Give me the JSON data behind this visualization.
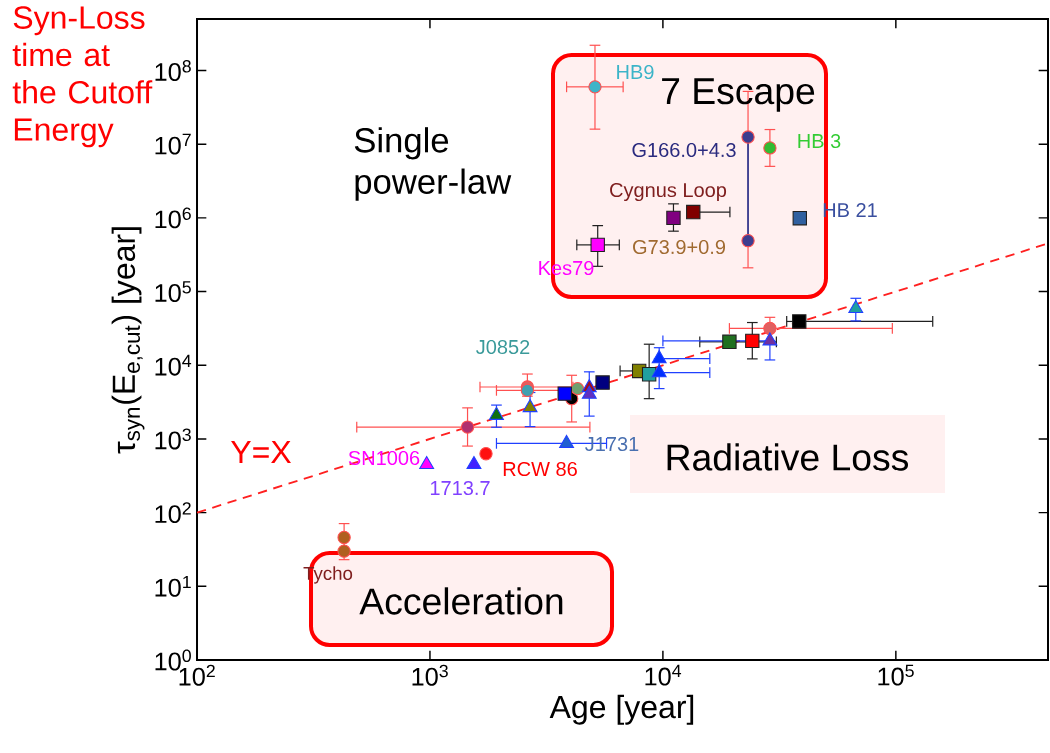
{
  "chart_data": {
    "type": "scatter",
    "log": "xy",
    "xlabel": "Age [year]",
    "ylabel": "τ$_{syn}$(E$_{e,cut}$) [year]",
    "xlim": [
      100,
      450000
    ],
    "ylim": [
      1,
      500000000
    ],
    "xticks": [
      {
        "value": 100,
        "label": "10$^{2}$"
      },
      {
        "value": 1000,
        "label": "10$^{3}$"
      },
      {
        "value": 10000,
        "label": "10$^{4}$"
      },
      {
        "value": 100000,
        "label": "10$^{5}$"
      }
    ],
    "yticks": [
      {
        "value": 1,
        "label": "10$^{0}$"
      },
      {
        "value": 10,
        "label": "10$^{1}$"
      },
      {
        "value": 100,
        "label": "10$^{2}$"
      },
      {
        "value": 1000,
        "label": "10$^{3}$"
      },
      {
        "value": 10000,
        "label": "10$^{4}$"
      },
      {
        "value": 100000,
        "label": "10$^{5}$"
      },
      {
        "value": 1000000,
        "label": "10$^{6}$"
      },
      {
        "value": 10000000,
        "label": "10$^{7}$"
      },
      {
        "value": 100000000,
        "label": "10$^{8}$"
      }
    ],
    "series": [
      {
        "type": "line",
        "color": "#ff2020",
        "line_style": "dashed",
        "marker": "none",
        "x": [
          100,
          450000
        ],
        "values": [
          100,
          450000
        ]
      },
      {
        "type": "line",
        "color": "#3d3d8f",
        "line_style": "solid",
        "marker": "none",
        "x": [
          23200,
          23200
        ],
        "values": [
          12500000,
          490000
        ]
      },
      {
        "marker": "circle",
        "color": "#ff5050",
        "x": [
          5110,
          23200,
          23200,
          28800,
          1450,
          1740,
          2620,
          2620,
          4060,
          4300,
          28800,
          428,
          428
        ],
        "values": [
          60000000,
          12500000,
          490000,
          8900000,
          1450,
          630,
          5070,
          4560,
          3520,
          4820,
          31600,
          46,
          30
        ],
        "colors": [
          "#3cb4c8",
          "#3d3d8f",
          "#3d3d8f",
          "#33bb33",
          "#b0306f",
          "#ff1010",
          "#e06060",
          "#40a0b0",
          "#000000",
          "#70a070",
          "#e06060",
          "#b06020",
          "#b06020"
        ],
        "errors": [
          [
            16000000,
            220000000
          ],
          [
            12500000,
            52000000
          ],
          [
            210000,
            490000
          ],
          [
            5000000,
            15800000
          ],
          [
            800,
            2640
          ],
          null,
          [
            3800,
            7600
          ],
          null,
          [
            1700,
            7310
          ],
          null,
          [
            20000,
            44700
          ],
          [
            23,
            71
          ],
          null
        ],
        "xerrors": [
          [
            3860,
            6750
          ],
          null,
          null,
          null,
          [
            485,
            4860
          ],
          null,
          [
            1640,
            4110
          ],
          [
            1930,
            4860
          ],
          null,
          null,
          [
            19300,
            96600
          ],
          null,
          null
        ]
      },
      {
        "marker": "square",
        "color": "#202020",
        "x": [
          5250,
          11100,
          13500,
          38700,
          3790,
          5510,
          7910,
          8730,
          19300,
          24200,
          38500
        ],
        "values": [
          430000,
          1000000,
          1200000,
          990000,
          4120,
          5820,
          8370,
          7550,
          20800,
          21400,
          39300
        ],
        "colors": [
          "#ff00ff",
          "#800080",
          "#800000",
          "#3060a0",
          "#0000ff",
          "#000080",
          "#808000",
          "#20a0a0",
          "#207020",
          "#ff0000",
          "#000000"
        ],
        "errors": [
          [
            220000,
            785000
          ],
          [
            660000,
            1550000
          ],
          null,
          null,
          null,
          null,
          null,
          [
            3520,
            19300
          ],
          null,
          [
            12200,
            38000
          ],
          null
        ],
        "xerrors": [
          [
            4270,
            6500
          ],
          null,
          [
            13500,
            19400
          ],
          null,
          null,
          null,
          [
            6550,
            7910
          ],
          null,
          [
            14400,
            30700
          ],
          null,
          [
            34000,
            144000
          ]
        ]
      },
      {
        "marker": "triangle",
        "color": "#2040ff",
        "x": [
          968,
          1545,
          1930,
          2690,
          3860,
          4830,
          4830,
          9640,
          9640,
          28800,
          67300
        ],
        "values": [
          450,
          450,
          2090,
          2660,
          870,
          4970,
          4030,
          12300,
          7950,
          21400,
          59000
        ],
        "colors": [
          "#ff00ff",
          "#4020ff",
          "#107010",
          "#808000",
          "#2060d0",
          "#a01020",
          "#6030c0",
          "#0030ff",
          "#0030ff",
          "#7030a0",
          "#20a0a0"
        ],
        "errors": [
          null,
          null,
          [
            1440,
            2880
          ],
          [
            1470,
            4270
          ],
          null,
          [
            2040,
            8140
          ],
          null,
          [
            4820,
            17300
          ],
          null,
          [
            11800,
            34300
          ],
          [
            40000,
            81000
          ]
        ],
        "xerrors": [
          null,
          null,
          null,
          null,
          [
            1930,
            5730
          ],
          null,
          null,
          [
            9640,
            15900
          ],
          [
            9640,
            15900
          ],
          [
            10000,
            28800
          ],
          null
        ]
      }
    ],
    "annotations": [
      "HB9",
      "G166.0+4.3",
      "HB 3",
      "Cygnus Loop",
      "HB 21",
      "G73.9+0.9",
      "Kes79",
      "J0852",
      "J1731",
      "SN1006",
      "1713.7",
      "RCW 86",
      "Tycho",
      "Y=X",
      "Syn-Loss time at the Cutoff Energy",
      "7 Escape",
      "Single power-law",
      "Radiative Loss",
      "Acceleration"
    ]
  }
}
